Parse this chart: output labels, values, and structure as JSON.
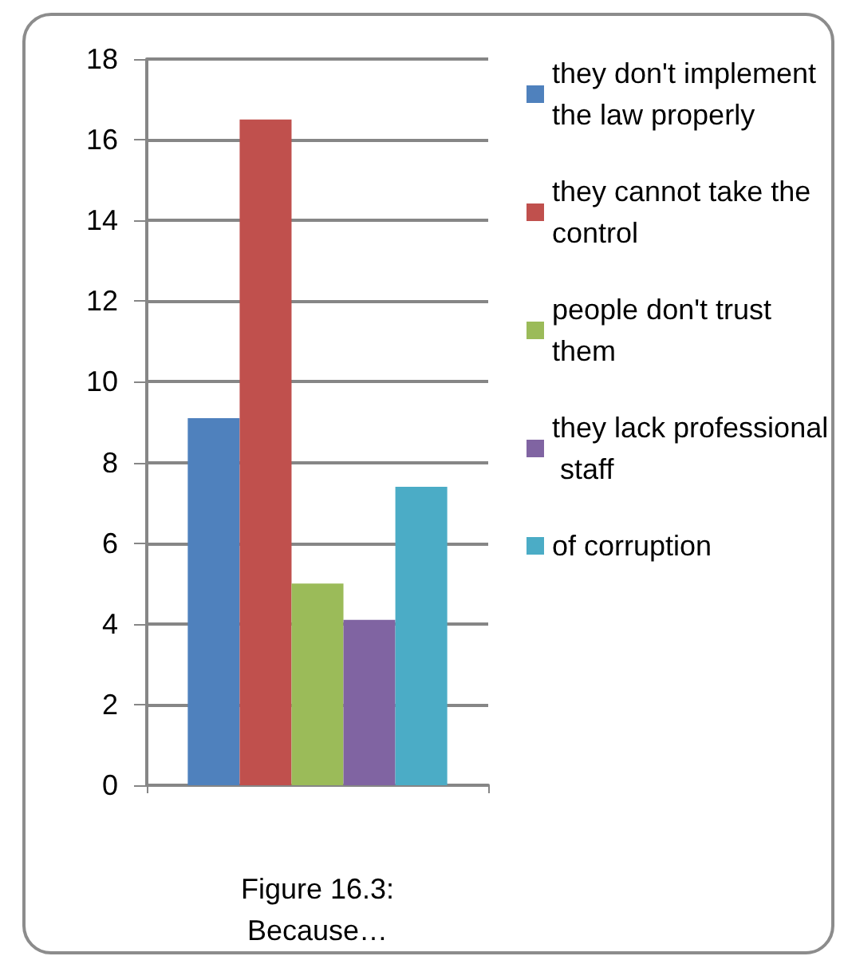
{
  "chart_data": {
    "type": "bar",
    "xlabel": "Figure 16.3: Because…",
    "categories": [
      null
    ],
    "series": [
      {
        "name": "they don't implement the law properly",
        "color": "#4f81bd",
        "values": [
          9.1
        ]
      },
      {
        "name": "they cannot take the control",
        "color": "#c0504d",
        "values": [
          16.5
        ]
      },
      {
        "name": "people don't trust them",
        "color": "#9bbb59",
        "values": [
          5.0
        ]
      },
      {
        "name": "they lack professional staff",
        "color": "#8064a2",
        "values": [
          4.1
        ]
      },
      {
        "name": "of corruption",
        "color": "#4bacc6",
        "values": [
          7.4
        ]
      }
    ],
    "ylim": [
      0,
      18
    ],
    "yticks": [
      0,
      2,
      4,
      6,
      8,
      10,
      12,
      14,
      16,
      18
    ],
    "grid": "y",
    "legend": "right"
  }
}
